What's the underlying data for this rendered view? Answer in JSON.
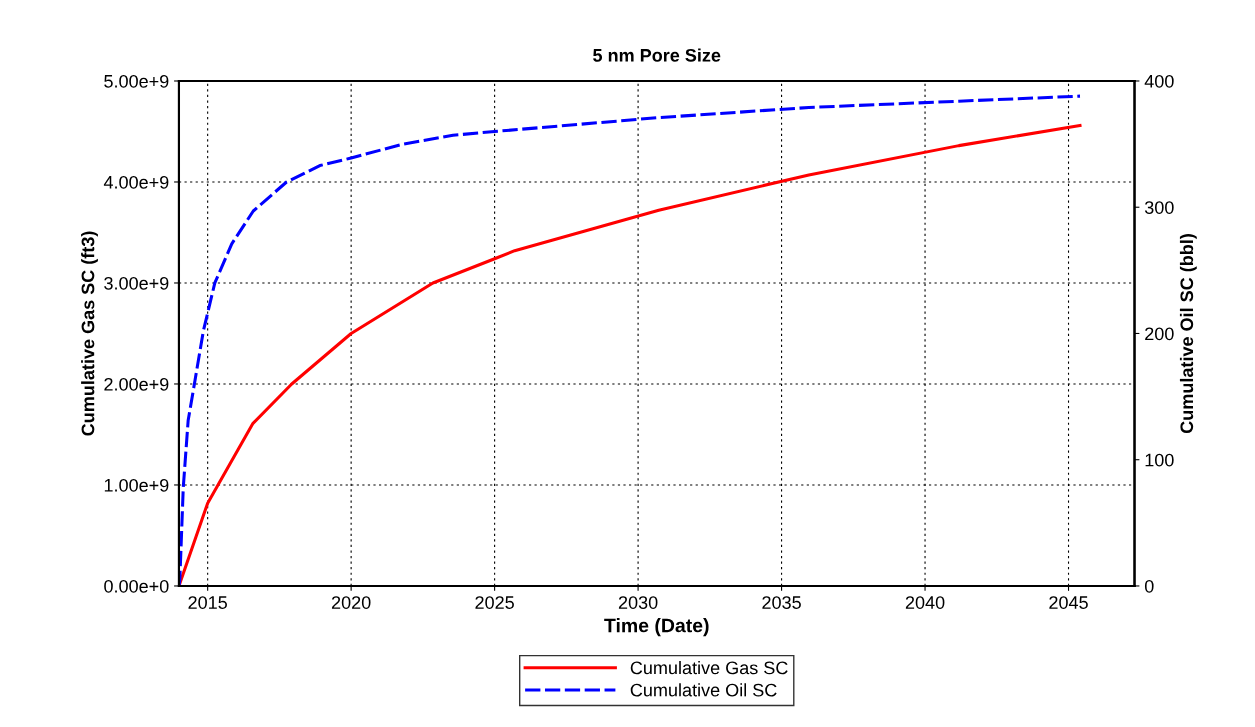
{
  "chart_data": {
    "type": "line",
    "title": "5 nm Pore Size",
    "xlabel": "Time (Date)",
    "ylabel": "Cumulative Gas SC (ft3)",
    "y2label": "Cumulative Oil SC (bbl)",
    "xlim": [
      2014.0,
      2047.3
    ],
    "xticks": [
      2015,
      2020,
      2025,
      2030,
      2035,
      2040,
      2045
    ],
    "ylim": [
      0,
      5000000000
    ],
    "yticks": [
      {
        "value": 0,
        "label": "0.00e+0"
      },
      {
        "value": 1000000000,
        "label": "1.00e+9"
      },
      {
        "value": 2000000000,
        "label": "2.00e+9"
      },
      {
        "value": 3000000000,
        "label": "3.00e+9"
      },
      {
        "value": 4000000000,
        "label": "4.00e+9"
      },
      {
        "value": 5000000000,
        "label": "5.00e+9"
      }
    ],
    "y2lim": [
      0,
      400
    ],
    "y2ticks": [
      0,
      100,
      200,
      300,
      400
    ],
    "grid": true,
    "legend": "bottom",
    "series": [
      {
        "name": "Cumulative Gas SC",
        "color": "#ff0000",
        "line_style": "solid",
        "x": [
          2014.0,
          2015.0,
          2015.36,
          2016.58,
          2017.93,
          2020.0,
          2022.85,
          2025.0,
          2025.7,
          2030.72,
          2035.95,
          2041.18,
          2045.4
        ],
        "values": [
          0,
          820000000,
          1000000000,
          1610000000,
          2000000000,
          2500000000,
          3000000000,
          3240000000,
          3320000000,
          3720000000,
          4070000000,
          4360000000,
          4560000000
        ]
      },
      {
        "name": "Cumulative Oil SC",
        "color": "#0000ff",
        "line_style": "dashed",
        "axis": "y2",
        "x": [
          2014.0,
          2014.03,
          2014.15,
          2014.32,
          2014.56,
          2014.85,
          2015.25,
          2015.84,
          2016.59,
          2017.75,
          2018.91,
          2020.0,
          2021.81,
          2023.55,
          2025.0,
          2030.72,
          2035.95,
          2041.18,
          2045.4
        ],
        "values": [
          0,
          5,
          78,
          131,
          163,
          202,
          240,
          271,
          297,
          320,
          333,
          339,
          350,
          357,
          360,
          371,
          379,
          384,
          388
        ]
      }
    ]
  }
}
